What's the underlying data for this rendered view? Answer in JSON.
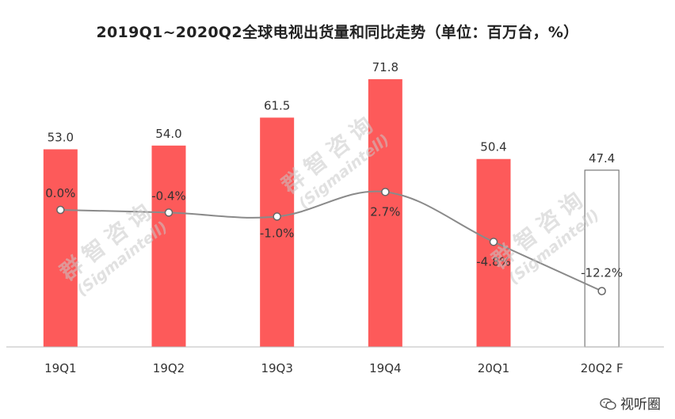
{
  "title": "2019Q1~2020Q2全球电视出货量和同比走势（单位：百万台，%）",
  "watermark": {
    "cn": "群智咨询",
    "en": "(Sigmaintell)"
  },
  "footer": {
    "label": "视听圈",
    "icon": "wechat-icon"
  },
  "colors": {
    "bar": "#fd5a5a",
    "forecast_border": "#7a7a7a",
    "line": "#8a8a8a"
  },
  "chart_data": {
    "type": "bar",
    "title": "2019Q1~2020Q2全球电视出货量和同比走势（单位：百万台，%）",
    "categories": [
      "19Q1",
      "19Q2",
      "19Q3",
      "19Q4",
      "20Q1",
      "20Q2 F"
    ],
    "series": [
      {
        "values": [
          53.0,
          54.0,
          61.5,
          71.8,
          50.4,
          47.4
        ],
        "labels": [
          "53.0",
          "54.0",
          "61.5",
          "71.8",
          "50.4",
          "47.4"
        ]
      },
      {
        "type": "line",
        "values": [
          0.0,
          -0.4,
          -1.0,
          2.7,
          -4.8,
          -12.2
        ],
        "labels": [
          "0.0%",
          "-0.4%",
          "-1.0%",
          "2.7%",
          "-4.8%",
          "-12.2%"
        ]
      }
    ],
    "forecast_index": 5,
    "grid": false,
    "legend": "none"
  }
}
